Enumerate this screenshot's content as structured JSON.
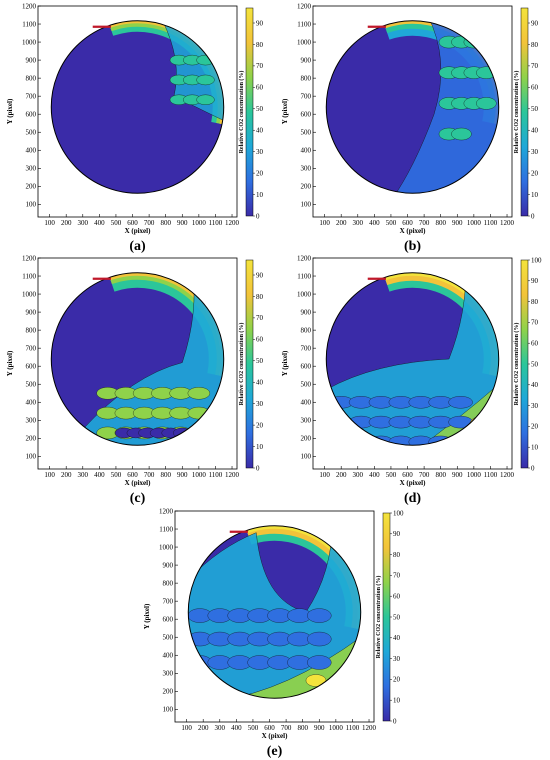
{
  "figure": {
    "xlabel": "X (pixel)",
    "ylabel": "Y (pixel)",
    "colorbar_label": "Relative CO2 concentration (%)"
  },
  "chart_data": [
    {
      "panel": "(a)",
      "type": "heatmap",
      "xlabel": "X (pixel)",
      "ylabel": "Y (pixel)",
      "x_ticks": [
        100,
        200,
        300,
        400,
        500,
        600,
        700,
        800,
        900,
        1000,
        1100,
        1200
      ],
      "y_ticks": [
        100,
        200,
        300,
        400,
        500,
        600,
        700,
        800,
        900,
        1000,
        1100,
        1200
      ],
      "xlim": [
        30,
        1230
      ],
      "ylim": [
        30,
        1200
      ],
      "colorbar_ticks": [
        0,
        10,
        20,
        30,
        40,
        50,
        60,
        70,
        80,
        90
      ],
      "colorbar_range": [
        0,
        97
      ],
      "colorbar_label": "Relative CO2 concentration (%)",
      "colormap": [
        "#3a2ba8",
        "#2f6fe0",
        "#1fa8d8",
        "#2bc69a",
        "#8fd24a",
        "#f2c33a",
        "#f3e33c"
      ],
      "description_regions": "CO2 front confined to upper-right rim"
    },
    {
      "panel": "(b)",
      "type": "heatmap",
      "xlabel": "X (pixel)",
      "ylabel": "Y (pixel)",
      "x_ticks": [
        100,
        200,
        300,
        400,
        500,
        600,
        700,
        800,
        900,
        1000,
        1100,
        1200
      ],
      "y_ticks": [
        100,
        200,
        300,
        400,
        500,
        600,
        700,
        800,
        900,
        1000,
        1100,
        1200
      ],
      "xlim": [
        30,
        1230
      ],
      "ylim": [
        30,
        1200
      ],
      "colorbar_ticks": [
        0,
        10,
        20,
        30,
        40,
        50,
        60,
        70,
        80,
        90
      ],
      "colorbar_range": [
        0,
        97
      ],
      "colorbar_label": "Relative CO2 concentration (%)",
      "colormap": [
        "#3a2ba8",
        "#2f6fe0",
        "#1fa8d8",
        "#2bc69a",
        "#8fd24a",
        "#f2c33a",
        "#f3e33c"
      ]
    },
    {
      "panel": "(c)",
      "type": "heatmap",
      "xlabel": "X (pixel)",
      "ylabel": "Y (pixel)",
      "x_ticks": [
        100,
        200,
        300,
        400,
        500,
        600,
        700,
        800,
        900,
        1000,
        1100,
        1200
      ],
      "y_ticks": [
        100,
        200,
        300,
        400,
        500,
        600,
        700,
        800,
        900,
        1000,
        1100,
        1200
      ],
      "xlim": [
        30,
        1230
      ],
      "ylim": [
        30,
        1200
      ],
      "colorbar_ticks": [
        0,
        10,
        20,
        30,
        40,
        50,
        60,
        70,
        80,
        90
      ],
      "colorbar_range": [
        0,
        97
      ],
      "colorbar_label": "Relative CO2 concentration (%)",
      "colormap": [
        "#3a2ba8",
        "#2f6fe0",
        "#1fa8d8",
        "#2bc69a",
        "#8fd24a",
        "#f2c33a",
        "#f3e33c"
      ]
    },
    {
      "panel": "(d)",
      "type": "heatmap",
      "xlabel": "X (pixel)",
      "ylabel": "Y (pixel)",
      "x_ticks": [
        100,
        200,
        300,
        400,
        500,
        600,
        700,
        800,
        900,
        1000,
        1100,
        1200
      ],
      "y_ticks": [
        100,
        200,
        300,
        400,
        500,
        600,
        700,
        800,
        900,
        1000,
        1100,
        1200
      ],
      "xlim": [
        30,
        1230
      ],
      "ylim": [
        30,
        1200
      ],
      "colorbar_ticks": [
        0,
        10,
        20,
        30,
        40,
        50,
        60,
        70,
        80,
        90,
        100
      ],
      "colorbar_range": [
        0,
        100
      ],
      "colorbar_label": "Relative CO2 concentration (%)",
      "colormap": [
        "#3a2ba8",
        "#2f6fe0",
        "#1fa8d8",
        "#2bc69a",
        "#8fd24a",
        "#f2c33a",
        "#f3e33c"
      ]
    },
    {
      "panel": "(e)",
      "type": "heatmap",
      "xlabel": "X (pixel)",
      "ylabel": "Y (pixel)",
      "x_ticks": [
        100,
        200,
        300,
        400,
        500,
        600,
        700,
        800,
        900,
        1000,
        1100,
        1200
      ],
      "y_ticks": [
        100,
        200,
        300,
        400,
        500,
        600,
        700,
        800,
        900,
        1000,
        1100,
        1200
      ],
      "xlim": [
        30,
        1230
      ],
      "ylim": [
        30,
        1200
      ],
      "colorbar_ticks": [
        0,
        10,
        20,
        30,
        40,
        50,
        60,
        70,
        80,
        90,
        100
      ],
      "colorbar_range": [
        0,
        100
      ],
      "colorbar_label": "Relative CO2 concentration (%)",
      "colormap": [
        "#3a2ba8",
        "#2f6fe0",
        "#1fa8d8",
        "#2bc69a",
        "#8fd24a",
        "#f2c33a",
        "#f3e33c"
      ]
    }
  ]
}
